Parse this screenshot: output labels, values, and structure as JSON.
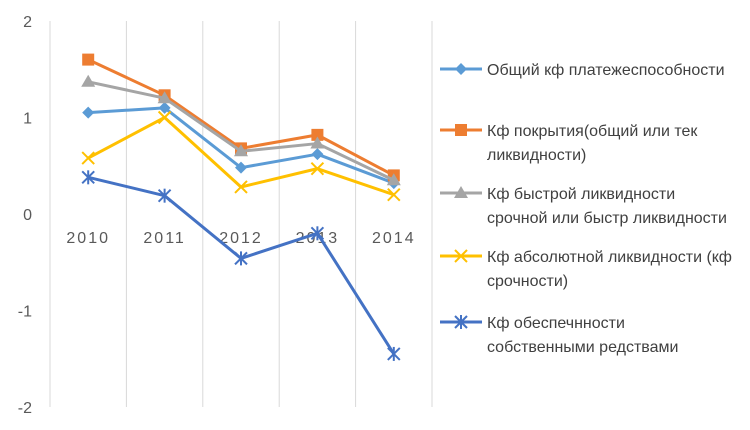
{
  "chart_data": {
    "type": "line",
    "categories": [
      "2010",
      "2011",
      "2012",
      "2013",
      "2014"
    ],
    "ylim": [
      -2,
      2
    ],
    "yticks": [
      2,
      1,
      0,
      -1,
      -2
    ],
    "grid": "vertical",
    "legend_position": "right",
    "series": [
      {
        "name_lines": [
          "Общий кф платежеспособности"
        ],
        "color": "#5B9BD5",
        "marker": "diamond",
        "values": [
          1.05,
          1.1,
          0.48,
          0.62,
          0.32
        ]
      },
      {
        "name_lines": [
          "Кф покрытия(общий или тек",
          "ликвидности)"
        ],
        "color": "#ED7D31",
        "marker": "square",
        "values": [
          1.6,
          1.23,
          0.68,
          0.82,
          0.4
        ]
      },
      {
        "name_lines": [
          "Кф быстрой ликвидности",
          "срочной или быстр ликвидности"
        ],
        "color": "#A5A5A5",
        "marker": "triangle",
        "values": [
          1.37,
          1.2,
          0.65,
          0.73,
          0.35
        ]
      },
      {
        "name_lines": [
          "Кф абсолютной ликвидности (кф",
          "срочности)"
        ],
        "color": "#FFC000",
        "marker": "x",
        "values": [
          0.58,
          1.0,
          0.28,
          0.47,
          0.2
        ]
      },
      {
        "name_lines": [
          "Кф обеспечнности",
          "собственными редствами"
        ],
        "color": "#4472C4",
        "marker": "star",
        "values": [
          0.38,
          0.19,
          -0.46,
          -0.2,
          -1.45
        ]
      }
    ]
  }
}
